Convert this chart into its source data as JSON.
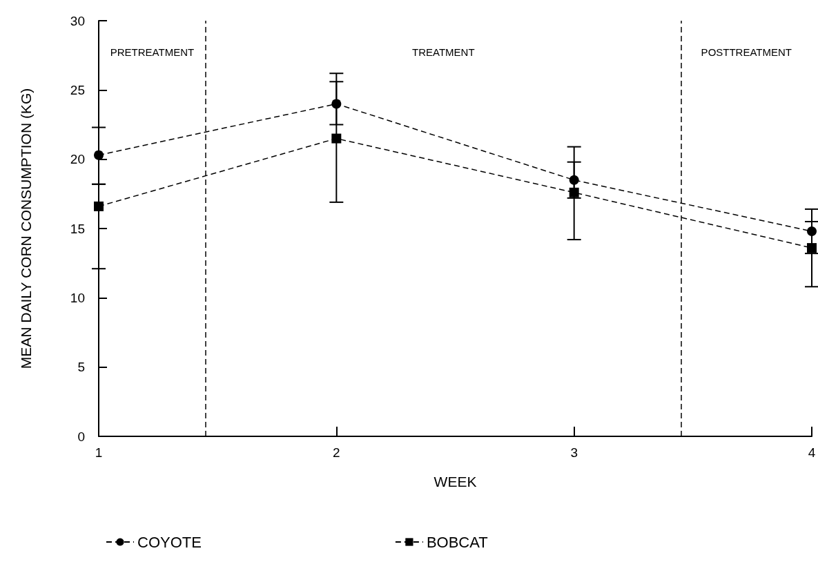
{
  "chart_data": {
    "type": "line",
    "xlabel": "WEEK",
    "ylabel": "MEAN DAILY CORN CONSUMPTION (KG)",
    "x": [
      1,
      2,
      3,
      4
    ],
    "series": [
      {
        "name": "COYOTE",
        "color": "#000000",
        "values": [
          20.3,
          24.0,
          18.5,
          14.8
        ],
        "errors": [
          [
            18.2,
            22.3
          ],
          [
            22.5,
            25.6
          ],
          [
            17.2,
            19.8
          ],
          [
            13.2,
            16.4
          ]
        ],
        "marker": "circle",
        "line_style": "dashed"
      },
      {
        "name": "BOBCAT",
        "color": "#000000",
        "values": [
          16.6,
          21.5,
          17.6,
          13.6
        ],
        "errors": [
          [
            12.1,
            18.2
          ],
          [
            16.9,
            26.2
          ],
          [
            14.2,
            20.9
          ],
          [
            10.8,
            15.5
          ]
        ],
        "marker": "square",
        "line_style": "dashed"
      }
    ],
    "xlim": [
      1,
      4
    ],
    "xticks": [
      1,
      2,
      3,
      4
    ],
    "ylim": [
      0,
      30
    ],
    "yticks": [
      0,
      5,
      10,
      15,
      20,
      25,
      30
    ],
    "ref_lines": [
      {
        "axis": "x",
        "value": 1.45,
        "line_style": "dashed"
      },
      {
        "axis": "x",
        "value": 3.45,
        "line_style": "dashed"
      }
    ],
    "annotations": [
      "PRETREATMENT",
      "TREATMENT",
      "POSTTREATMENT"
    ],
    "grid": false,
    "legend": "bottom left"
  }
}
